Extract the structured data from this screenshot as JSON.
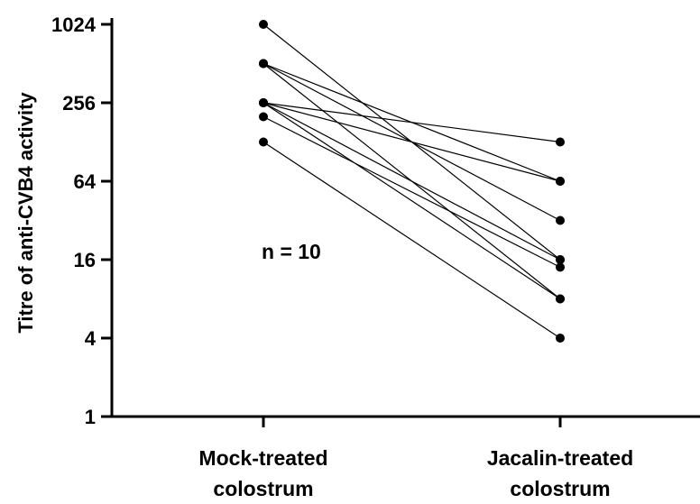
{
  "chart_data": {
    "type": "line",
    "scale": "log2",
    "ylabel": "Titre of anti-CVB4 activity",
    "categories": [
      "Mock-treated colostrum",
      "Jacalin-treated colostrum"
    ],
    "category_lines": [
      [
        "Mock-treated",
        "colostrum"
      ],
      [
        "Jacalin-treated",
        "colostrum"
      ]
    ],
    "yticks": [
      1,
      4,
      16,
      64,
      256,
      1024
    ],
    "ytick_labels": [
      "1",
      "4",
      "16",
      "64",
      "256",
      "1024"
    ],
    "ylim": [
      1,
      1024
    ],
    "annotation": "n = 10",
    "pairs": [
      [
        1024,
        16
      ],
      [
        512,
        64
      ],
      [
        512,
        32
      ],
      [
        512,
        8
      ],
      [
        256,
        128
      ],
      [
        256,
        64
      ],
      [
        256,
        16
      ],
      [
        256,
        8
      ],
      [
        200,
        14
      ],
      [
        128,
        4
      ]
    ],
    "colors": {
      "line": "#000000",
      "point": "#000000",
      "axis": "#000000"
    }
  }
}
